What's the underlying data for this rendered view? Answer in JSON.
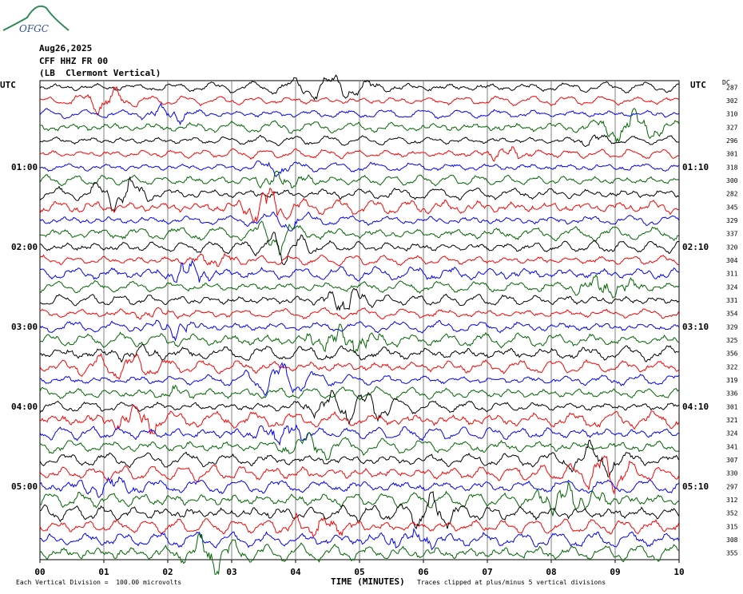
{
  "logo": {
    "text": "OFGC"
  },
  "header": {
    "date": "Aug26,2025",
    "station": "CFF HHZ FR 00",
    "location": "(LB  Clermont Vertical)"
  },
  "utc_left": "UTC",
  "utc_right": "UTC",
  "dc_label": "DC",
  "time_labels_left": [
    "01:00",
    "02:00",
    "03:00",
    "04:00",
    "05:00"
  ],
  "time_labels_right": [
    "01:10",
    "02:10",
    "03:10",
    "04:10",
    "05:10"
  ],
  "footer": {
    "division": "Each Vertical Division =  100.00 microvolts",
    "xlabel": "TIME (MINUTES)",
    "clip_note": "Traces clipped at plus/minus 5 vertical divisions"
  },
  "colors": {
    "black": "#000000",
    "red": "#ff0000",
    "blue": "#0000ff",
    "green": "#006600",
    "grid": "#808080",
    "logo": "#2e8b57"
  },
  "chart_data": {
    "type": "line",
    "xlabel": "TIME (MINUTES)",
    "x_ticks": [
      "00",
      "01",
      "02",
      "03",
      "04",
      "05",
      "06",
      "07",
      "08",
      "09",
      "10"
    ],
    "xlim": [
      0,
      10
    ],
    "trace_color_cycle": [
      "black",
      "red",
      "blue",
      "green"
    ],
    "dc_offsets": [
      287,
      302,
      310,
      327,
      296,
      301,
      318,
      300,
      282,
      345,
      329,
      337,
      320,
      304,
      311,
      324,
      331,
      354,
      329,
      325,
      356,
      322,
      319,
      336,
      301,
      321,
      324,
      341,
      307,
      330,
      297,
      312,
      352,
      315,
      308,
      355
    ],
    "trace_amplitude": [
      1.1,
      1.0,
      1.0,
      1.2,
      1.0,
      1.0,
      1.0,
      1.1,
      1.3,
      1.6,
      1.1,
      1.4,
      1.3,
      1.1,
      1.5,
      1.2,
      1.2,
      1.1,
      1.2,
      1.4,
      1.6,
      1.4,
      1.2,
      1.3,
      1.2,
      1.7,
      1.4,
      1.5,
      1.5,
      1.6,
      1.5,
      1.6,
      1.7,
      1.5,
      1.6,
      1.8
    ]
  }
}
